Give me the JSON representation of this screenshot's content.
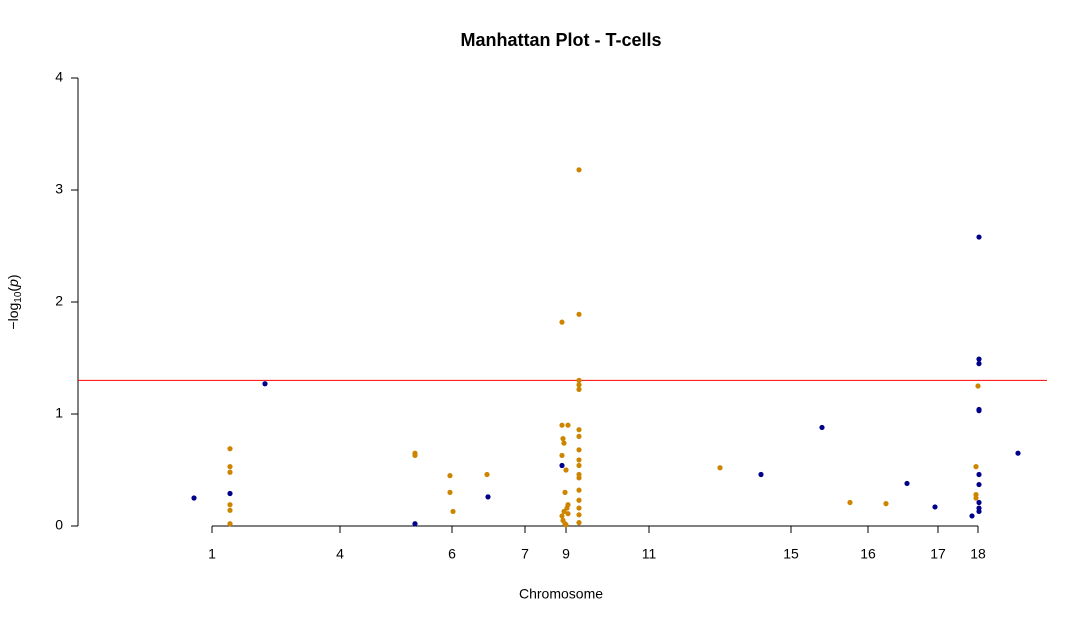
{
  "chart_data": {
    "type": "scatter",
    "title": "Manhattan Plot - T-cells",
    "x_label": "Chromosome",
    "y_label": {
      "prefix": "−log",
      "sub": "10",
      "open": "(",
      "var": "p",
      "close": ")"
    },
    "xlim": [
      0,
      969
    ],
    "ylim": [
      0,
      4
    ],
    "yticks": [
      0,
      1,
      2,
      3,
      4
    ],
    "xticks": [
      {
        "value": 134,
        "label": "1"
      },
      {
        "value": 262,
        "label": "4"
      },
      {
        "value": 374,
        "label": "6"
      },
      {
        "value": 447,
        "label": "7"
      },
      {
        "value": 488,
        "label": "9"
      },
      {
        "value": 571,
        "label": "11"
      },
      {
        "value": 713,
        "label": "15"
      },
      {
        "value": 790,
        "label": "16"
      },
      {
        "value": 860,
        "label": "17"
      },
      {
        "value": 900,
        "label": "18"
      }
    ],
    "hline": {
      "value": 1.3,
      "color": "#ff0000"
    },
    "series": [
      {
        "color": "#cd8500",
        "x": [
          152,
          152,
          152,
          152,
          152,
          152,
          337,
          337,
          372,
          372,
          375,
          409,
          484,
          484,
          490,
          484,
          485,
          486,
          488,
          487,
          490,
          489,
          486,
          484,
          485,
          487,
          488,
          490,
          501,
          501,
          501,
          501,
          501,
          501,
          501,
          501,
          501,
          501,
          501,
          501,
          501,
          501,
          501,
          501,
          501,
          642,
          772,
          808,
          898,
          900,
          898,
          898
        ],
        "values": [
          0.69,
          0.53,
          0.48,
          0.19,
          0.14,
          0.02,
          0.65,
          0.63,
          0.45,
          0.3,
          0.13,
          0.46,
          1.82,
          0.9,
          0.9,
          0.63,
          0.78,
          0.74,
          0.5,
          0.3,
          0.19,
          0.16,
          0.13,
          0.09,
          0.05,
          0.02,
          0.01,
          0.11,
          3.18,
          1.89,
          1.3,
          1.26,
          1.22,
          0.86,
          0.8,
          0.68,
          0.59,
          0.54,
          0.46,
          0.43,
          0.32,
          0.23,
          0.16,
          0.1,
          0.03,
          0.52,
          0.21,
          0.2,
          0.53,
          1.25,
          0.28,
          0.25
        ]
      },
      {
        "color": "#00008b",
        "x": [
          116,
          152,
          187,
          337,
          410,
          484,
          683,
          744,
          829,
          857,
          894,
          901,
          901,
          901,
          901,
          901,
          901,
          901,
          901,
          901,
          901,
          940
        ],
        "values": [
          0.25,
          0.29,
          1.27,
          0.02,
          0.26,
          0.54,
          0.46,
          0.88,
          0.38,
          0.17,
          0.09,
          2.58,
          1.49,
          1.45,
          1.04,
          1.03,
          0.46,
          0.37,
          0.21,
          0.16,
          0.13,
          0.65
        ]
      }
    ]
  }
}
